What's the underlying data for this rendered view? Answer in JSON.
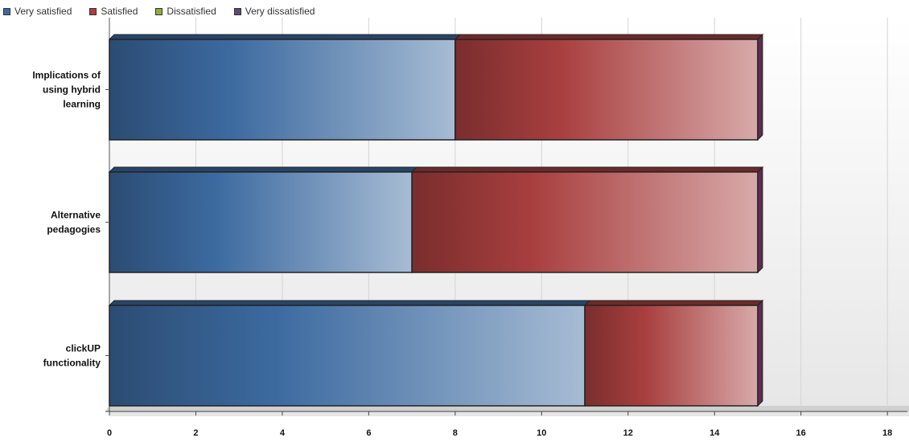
{
  "chart_data": {
    "type": "bar",
    "orientation": "horizontal",
    "stacked": true,
    "style": "3d-gradient",
    "categories": [
      "Implications of using hybrid learning",
      "Alternative pedagogies",
      "clickUP functionality"
    ],
    "category_lines": [
      [
        "Implications of",
        "using hybrid",
        "learning"
      ],
      [
        "Alternative",
        "pedagogies"
      ],
      [
        "clickUP",
        "functionality"
      ]
    ],
    "series": [
      {
        "name": "Very satisfied",
        "color": "#3c6aa0",
        "values": [
          8,
          7,
          11
        ]
      },
      {
        "name": "Satisfied",
        "color": "#a93f3f",
        "values": [
          7,
          8,
          4
        ]
      },
      {
        "name": "Dissatisfied",
        "color": "#8fae3c",
        "values": [
          0,
          0,
          0
        ]
      },
      {
        "name": "Very dissatisfied",
        "color": "#5b4a7a",
        "values": [
          0,
          0,
          0
        ]
      }
    ],
    "x_ticks": [
      "0",
      "2",
      "4",
      "6",
      "8",
      "10",
      "12",
      "14",
      "16",
      "18"
    ],
    "xlim": [
      0,
      18.5
    ],
    "grid": true,
    "legend_position": "top-left",
    "title": "",
    "xlabel": "",
    "ylabel": ""
  }
}
